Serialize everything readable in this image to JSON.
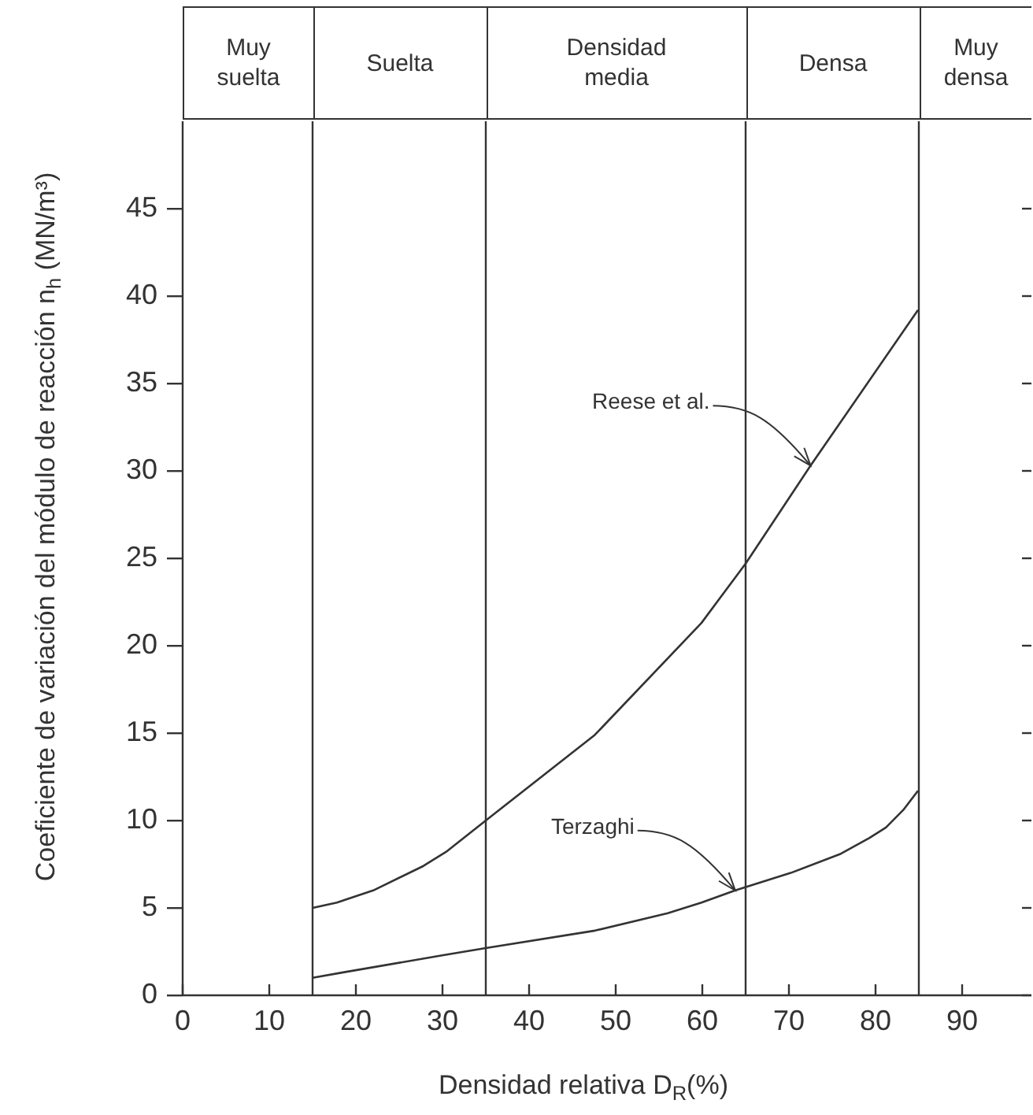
{
  "chart_data": {
    "type": "line",
    "xlabel": "Densidad relativa D$_{R}$(%)",
    "ylabel": "Coeficiente de variación del módulo de reacción n$_{h}$ (MN/m³)",
    "xlim": [
      0,
      98
    ],
    "xticks": [
      0,
      10,
      20,
      30,
      40,
      50,
      60,
      70,
      80,
      90
    ],
    "ylim": [
      0,
      50
    ],
    "yticks": [
      0,
      5,
      10,
      15,
      20,
      25,
      30,
      35,
      40,
      45
    ],
    "grid": false,
    "legend": false,
    "marker": "none",
    "line_style": "solid",
    "ref_lines": [
      {
        "axis": "x",
        "value": 15
      },
      {
        "axis": "x",
        "value": 35
      },
      {
        "axis": "x",
        "value": 65
      },
      {
        "axis": "x",
        "value": 85
      }
    ],
    "series": [
      {
        "color": "#333333",
        "x": [
          15,
          17.8,
          22,
          27.8,
          30.4,
          35,
          47.6,
          59.9,
          65,
          72.5,
          84.9
        ],
        "values": [
          5.0,
          5.3,
          6.0,
          7.4,
          8.2,
          10.0,
          14.9,
          21.3,
          24.7,
          30.3,
          39.2
        ]
      },
      {
        "color": "#333333",
        "x": [
          15,
          18.4,
          30.1,
          35,
          47.6,
          56,
          59.9,
          63.8,
          70.2,
          76,
          79.3,
          81.2,
          83.2,
          84.9
        ],
        "values": [
          1.0,
          1.3,
          2.3,
          2.7,
          3.7,
          4.7,
          5.3,
          6.0,
          7.0,
          8.1,
          9.0,
          9.6,
          10.6,
          11.7
        ]
      }
    ],
    "annotations": [
      "Muy suelta",
      "Suelta",
      "Densidad media",
      "Densa",
      "Muy densa",
      {
        "text": "Reese et al.",
        "x": 72.5,
        "y": 30.3
      },
      {
        "text": "Terzaghi",
        "x": 63.8,
        "y": 6.0
      }
    ]
  }
}
